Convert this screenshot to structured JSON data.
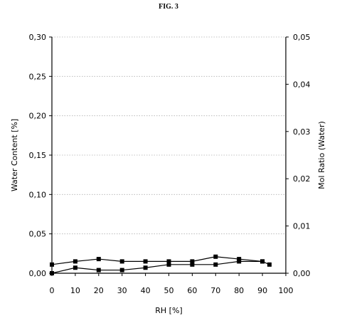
{
  "figure_label": "FIG. 3",
  "chart_data": {
    "type": "line",
    "xlabel": "RH [%]",
    "ylabel": "Water Content [%]",
    "y2label": "Mol Ratio (Water)",
    "xlim": [
      0,
      100
    ],
    "ylim": [
      0,
      0.3
    ],
    "y2lim": [
      0,
      0.05
    ],
    "xticks": [
      "0",
      "10",
      "20",
      "30",
      "40",
      "50",
      "60",
      "70",
      "80",
      "90",
      "100"
    ],
    "yticks": [
      "0,00",
      "0,05",
      "0,10",
      "0,15",
      "0,20",
      "0,25",
      "0,30"
    ],
    "y2ticks": [
      "0,00",
      "0,01",
      "0,02",
      "0,03",
      "0,04",
      "0,05"
    ],
    "grid": "horizontal dotted",
    "series": [
      {
        "axis": "left",
        "x": [
          0,
          10,
          20,
          30,
          40,
          50,
          60,
          70,
          80,
          90,
          93
        ],
        "values": [
          0.011,
          0.015,
          0.018,
          0.015,
          0.015,
          0.015,
          0.015,
          0.021,
          0.018,
          0.015,
          0.011
        ]
      },
      {
        "axis": "left",
        "x": [
          0,
          10,
          20,
          30,
          40,
          50,
          60,
          70,
          80,
          90
        ],
        "values": [
          0.0,
          0.007,
          0.004,
          0.004,
          0.007,
          0.011,
          0.011,
          0.011,
          0.015,
          0.015
        ]
      }
    ]
  }
}
